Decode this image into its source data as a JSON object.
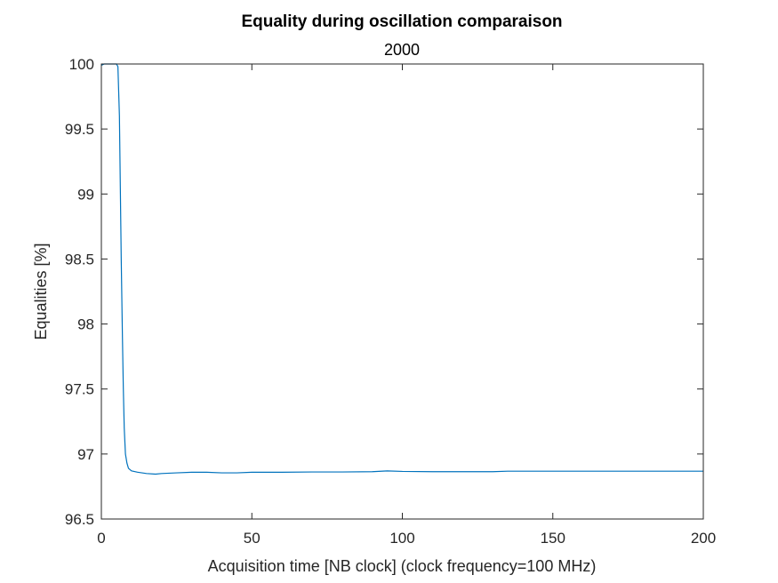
{
  "chart_data": {
    "type": "line",
    "title": "Equality during oscillation comparaison",
    "subtitle": "2000",
    "xlabel": "Acquisition time [NB clock] (clock frequency=100 MHz)",
    "ylabel": "Equalities [%]",
    "xlim": [
      0,
      200
    ],
    "ylim": [
      96.5,
      100
    ],
    "xticks": [
      0,
      50,
      100,
      150,
      200
    ],
    "yticks": [
      96.5,
      97,
      97.5,
      98,
      98.5,
      99,
      99.5,
      100
    ],
    "xtick_labels": [
      "0",
      "50",
      "100",
      "150",
      "200"
    ],
    "ytick_labels": [
      "96.5",
      "97",
      "97.5",
      "98",
      "98.5",
      "99",
      "99.5",
      "100"
    ],
    "grid": false,
    "line_color": "#0072BD",
    "series": [
      {
        "x": [
          0,
          1,
          2,
          3,
          4,
          5,
          5.5,
          6,
          6.3,
          6.6,
          7,
          7.3,
          7.6,
          8,
          8.5,
          9,
          10,
          12,
          15,
          18,
          20,
          25,
          30,
          35,
          40,
          45,
          50,
          60,
          70,
          80,
          90,
          95,
          100,
          110,
          120,
          130,
          135,
          140,
          150,
          160,
          170,
          180,
          190,
          200
        ],
        "y": [
          99.99,
          100,
          100,
          100,
          100,
          100,
          99.98,
          99.6,
          99.05,
          98.5,
          97.9,
          97.5,
          97.2,
          97.0,
          96.93,
          96.89,
          96.87,
          96.86,
          96.85,
          96.845,
          96.85,
          96.855,
          96.86,
          96.86,
          96.855,
          96.855,
          96.86,
          96.86,
          96.862,
          96.862,
          96.864,
          96.87,
          96.866,
          96.864,
          96.864,
          96.864,
          96.868,
          96.868,
          96.868,
          96.868,
          96.868,
          96.868,
          96.868,
          96.868
        ]
      }
    ]
  }
}
